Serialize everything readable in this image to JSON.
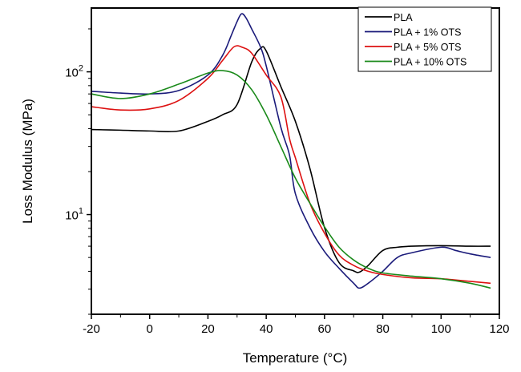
{
  "chart_data": {
    "type": "line",
    "title": "",
    "xlabel": "Temperature (°C)",
    "ylabel": "Loss Modulus (MPa)",
    "xlim": [
      -20,
      120
    ],
    "ylim": [
      2,
      280
    ],
    "yscale": "log",
    "grid": false,
    "legend_position": "top-right",
    "xticks": [
      "-20",
      "0",
      "20",
      "40",
      "60",
      "80",
      "100",
      "120"
    ],
    "xtick_values": [
      -20,
      0,
      20,
      40,
      60,
      80,
      100,
      120
    ],
    "yticks": [
      {
        "base": "10",
        "exp": "1",
        "value": 10
      },
      {
        "base": "10",
        "exp": "2",
        "value": 100
      }
    ],
    "series": [
      {
        "name": "PLA",
        "color": "#000000",
        "x": [
          -20,
          -10,
          0,
          10,
          20,
          25,
          30,
          35,
          38,
          40,
          45,
          50,
          55,
          60,
          65,
          70,
          72,
          75,
          80,
          85,
          90,
          100,
          110,
          117
        ],
        "y": [
          39.4,
          39,
          38.5,
          38.5,
          45,
          50,
          59,
          117,
          146,
          140,
          79,
          45,
          21,
          8.1,
          4.6,
          4.03,
          3.95,
          4.4,
          5.6,
          5.9,
          6.0,
          6.05,
          6.0,
          6.0
        ]
      },
      {
        "name": "PLA + 1% OTS",
        "color": "#1a1a7a",
        "x": [
          -20,
          -10,
          0,
          10,
          20,
          25,
          28,
          30,
          31.5,
          33,
          35,
          38,
          40,
          45,
          48,
          50,
          55,
          60,
          65,
          70,
          72,
          75,
          80,
          85,
          90,
          100,
          105,
          110,
          117
        ],
        "y": [
          73,
          71,
          70,
          74,
          95,
          130,
          180,
          225,
          255,
          240,
          200,
          150,
          110,
          41,
          26,
          14,
          8.1,
          5.5,
          4.2,
          3.3,
          3.05,
          3.3,
          4.0,
          5.0,
          5.4,
          5.9,
          5.6,
          5.3,
          5.0
        ]
      },
      {
        "name": "PLA + 5% OTS",
        "color": "#dd1111",
        "x": [
          -20,
          -10,
          0,
          10,
          20,
          25,
          29,
          32,
          35,
          40,
          45,
          48,
          50,
          55,
          60,
          65,
          70,
          75,
          80,
          90,
          100,
          110,
          117
        ],
        "y": [
          57,
          54,
          55,
          63,
          90,
          120,
          150,
          148,
          135,
          95,
          67,
          34,
          25,
          12,
          7.4,
          5.2,
          4.4,
          4.0,
          3.8,
          3.6,
          3.55,
          3.4,
          3.3
        ]
      },
      {
        "name": "PLA + 10% OTS",
        "color": "#1a8a1a",
        "x": [
          -20,
          -10,
          0,
          10,
          20,
          25,
          30,
          35,
          40,
          45,
          50,
          55,
          60,
          65,
          70,
          75,
          80,
          90,
          100,
          110,
          117
        ],
        "y": [
          70,
          65,
          70,
          82,
          98,
          102,
          95,
          75,
          50,
          30,
          18,
          12,
          8.2,
          5.9,
          4.8,
          4.2,
          3.9,
          3.7,
          3.55,
          3.3,
          3.05
        ]
      }
    ]
  }
}
